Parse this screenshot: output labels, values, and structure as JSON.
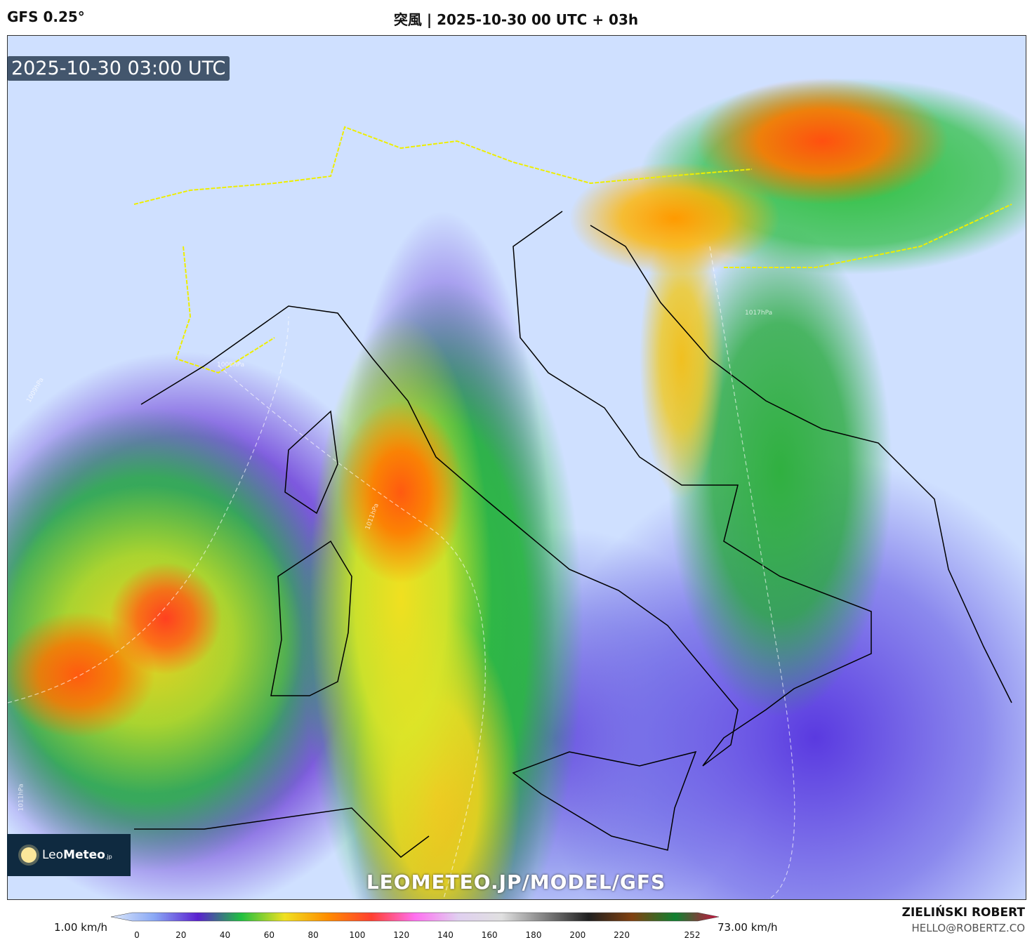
{
  "header": {
    "model": "GFS 0.25°",
    "title": "突風 | 2025-10-30 00 UTC + 03h"
  },
  "map": {
    "timestamp": "2025-10-30 03:00 UTC",
    "watermark": "LEOMETEO.JP/MODEL/GFS",
    "isobar_labels": [
      "1009hPa",
      "1009hPa",
      "1011hPa",
      "1011hPa",
      "1017hPa"
    ],
    "logo": {
      "part1": "Leo",
      "part2": "Meteo",
      "suffix": ".jp"
    }
  },
  "colorbar": {
    "min_label": "1.00 km/h",
    "max_label": "73.00 km/h",
    "ticks": [
      "0",
      "20",
      "40",
      "60",
      "80",
      "100",
      "120",
      "140",
      "160",
      "180",
      "200",
      "220",
      "252"
    ],
    "tick_values": [
      0,
      20,
      40,
      60,
      80,
      100,
      120,
      140,
      160,
      180,
      200,
      220,
      252
    ],
    "range": [
      0,
      252
    ],
    "colors": [
      "#dce8fa",
      "#8aa8f5",
      "#5a20d0",
      "#20c040",
      "#f0e020",
      "#ff8c00",
      "#ff4030",
      "#ff70f0",
      "#e0d0f0",
      "#e0e0e0",
      "#808080",
      "#202020",
      "#804010",
      "#108030",
      "#d01040"
    ]
  },
  "footer": {
    "author": "ZIELIŃSKI ROBERT",
    "email": "HELLO@ROBERTZ.CO"
  }
}
